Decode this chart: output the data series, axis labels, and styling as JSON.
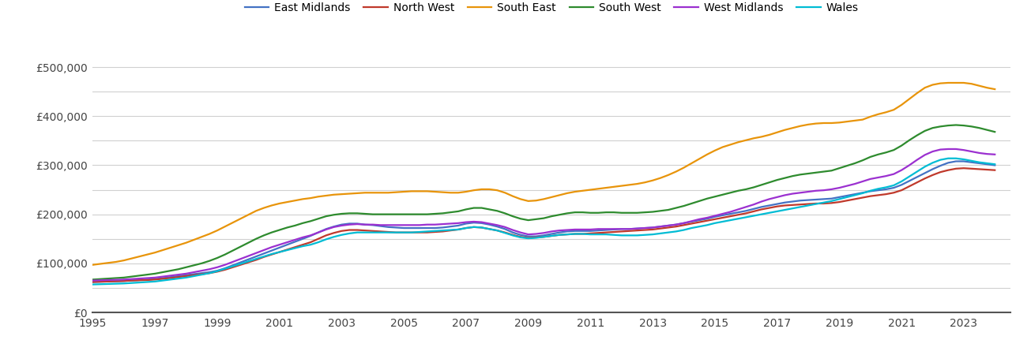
{
  "years": [
    1995.0,
    1995.25,
    1995.5,
    1995.75,
    1996.0,
    1996.25,
    1996.5,
    1996.75,
    1997.0,
    1997.25,
    1997.5,
    1997.75,
    1998.0,
    1998.25,
    1998.5,
    1998.75,
    1999.0,
    1999.25,
    1999.5,
    1999.75,
    2000.0,
    2000.25,
    2000.5,
    2000.75,
    2001.0,
    2001.25,
    2001.5,
    2001.75,
    2002.0,
    2002.25,
    2002.5,
    2002.75,
    2003.0,
    2003.25,
    2003.5,
    2003.75,
    2004.0,
    2004.25,
    2004.5,
    2004.75,
    2005.0,
    2005.25,
    2005.5,
    2005.75,
    2006.0,
    2006.25,
    2006.5,
    2006.75,
    2007.0,
    2007.25,
    2007.5,
    2007.75,
    2008.0,
    2008.25,
    2008.5,
    2008.75,
    2009.0,
    2009.25,
    2009.5,
    2009.75,
    2010.0,
    2010.25,
    2010.5,
    2010.75,
    2011.0,
    2011.25,
    2011.5,
    2011.75,
    2012.0,
    2012.25,
    2012.5,
    2012.75,
    2013.0,
    2013.25,
    2013.5,
    2013.75,
    2014.0,
    2014.25,
    2014.5,
    2014.75,
    2015.0,
    2015.25,
    2015.5,
    2015.75,
    2016.0,
    2016.25,
    2016.5,
    2016.75,
    2017.0,
    2017.25,
    2017.5,
    2017.75,
    2018.0,
    2018.25,
    2018.5,
    2018.75,
    2019.0,
    2019.25,
    2019.5,
    2019.75,
    2020.0,
    2020.25,
    2020.5,
    2020.75,
    2021.0,
    2021.25,
    2021.5,
    2021.75,
    2022.0,
    2022.25,
    2022.5,
    2022.75,
    2023.0,
    2023.25,
    2023.5,
    2023.75,
    2024.0
  ],
  "series": {
    "East Midlands": [
      62000,
      62500,
      63000,
      63500,
      64000,
      65000,
      66000,
      67000,
      68000,
      70000,
      72000,
      74000,
      76000,
      78000,
      80000,
      82000,
      85000,
      90000,
      96000,
      102000,
      108000,
      114000,
      120000,
      126000,
      132000,
      138000,
      144000,
      150000,
      156000,
      163000,
      170000,
      175000,
      179000,
      181000,
      181000,
      179000,
      178000,
      176000,
      174000,
      173000,
      172000,
      172000,
      172000,
      172000,
      172000,
      173000,
      175000,
      177000,
      181000,
      183000,
      182000,
      179000,
      175000,
      170000,
      163000,
      158000,
      155000,
      155000,
      157000,
      160000,
      163000,
      165000,
      166000,
      166000,
      166000,
      167000,
      168000,
      169000,
      170000,
      170000,
      171000,
      172000,
      173000,
      175000,
      177000,
      179000,
      182000,
      185000,
      188000,
      191000,
      195000,
      198000,
      201000,
      204000,
      207000,
      211000,
      215000,
      218000,
      221000,
      224000,
      226000,
      228000,
      229000,
      230000,
      231000,
      232000,
      235000,
      238000,
      241000,
      244000,
      247000,
      249000,
      251000,
      254000,
      260000,
      268000,
      276000,
      284000,
      292000,
      299000,
      305000,
      308000,
      308000,
      306000,
      304000,
      302000,
      300000
    ],
    "North West": [
      62000,
      62500,
      63000,
      63500,
      64000,
      65000,
      65500,
      66000,
      67000,
      68500,
      70000,
      72000,
      74000,
      76000,
      78000,
      80000,
      83000,
      87000,
      92000,
      97000,
      102000,
      107000,
      113000,
      118000,
      123000,
      128000,
      133000,
      138000,
      143000,
      150000,
      157000,
      162000,
      166000,
      168000,
      168000,
      167000,
      166000,
      165000,
      164000,
      163000,
      163000,
      163000,
      163000,
      163000,
      164000,
      165000,
      167000,
      169000,
      172000,
      174000,
      173000,
      170000,
      167000,
      163000,
      158000,
      154000,
      152000,
      153000,
      154000,
      156000,
      158000,
      159000,
      160000,
      160000,
      161000,
      162000,
      163000,
      164000,
      165000,
      166000,
      167000,
      168000,
      169000,
      171000,
      173000,
      175000,
      178000,
      181000,
      184000,
      187000,
      190000,
      193000,
      196000,
      199000,
      202000,
      206000,
      210000,
      213000,
      216000,
      218000,
      219000,
      220000,
      221000,
      222000,
      222000,
      223000,
      225000,
      228000,
      231000,
      234000,
      237000,
      239000,
      241000,
      244000,
      249000,
      257000,
      265000,
      273000,
      280000,
      286000,
      290000,
      293000,
      294000,
      293000,
      292000,
      291000,
      290000
    ],
    "South East": [
      97000,
      99000,
      101000,
      103000,
      106000,
      110000,
      114000,
      118000,
      122000,
      127000,
      132000,
      137000,
      142000,
      148000,
      154000,
      160000,
      167000,
      175000,
      183000,
      191000,
      199000,
      207000,
      213000,
      218000,
      222000,
      225000,
      228000,
      231000,
      233000,
      236000,
      238000,
      240000,
      241000,
      242000,
      243000,
      244000,
      244000,
      244000,
      244000,
      245000,
      246000,
      247000,
      247000,
      247000,
      246000,
      245000,
      244000,
      244000,
      246000,
      249000,
      251000,
      251000,
      249000,
      244000,
      237000,
      231000,
      227000,
      228000,
      231000,
      235000,
      239000,
      243000,
      246000,
      248000,
      250000,
      252000,
      254000,
      256000,
      258000,
      260000,
      262000,
      265000,
      269000,
      274000,
      280000,
      287000,
      295000,
      304000,
      313000,
      322000,
      330000,
      337000,
      342000,
      347000,
      351000,
      355000,
      358000,
      362000,
      367000,
      372000,
      376000,
      380000,
      383000,
      385000,
      386000,
      386000,
      387000,
      389000,
      391000,
      393000,
      399000,
      404000,
      408000,
      413000,
      423000,
      435000,
      447000,
      458000,
      464000,
      467000,
      468000,
      468000,
      468000,
      466000,
      462000,
      458000,
      455000
    ],
    "South West": [
      67000,
      68000,
      69000,
      70000,
      71000,
      73000,
      75000,
      77000,
      79000,
      82000,
      85000,
      88000,
      92000,
      96000,
      100000,
      105000,
      111000,
      118000,
      126000,
      134000,
      142000,
      150000,
      157000,
      163000,
      168000,
      173000,
      177000,
      182000,
      186000,
      191000,
      196000,
      199000,
      201000,
      202000,
      202000,
      201000,
      200000,
      200000,
      200000,
      200000,
      200000,
      200000,
      200000,
      200000,
      201000,
      202000,
      204000,
      206000,
      210000,
      213000,
      213000,
      210000,
      207000,
      202000,
      196000,
      191000,
      188000,
      190000,
      192000,
      196000,
      199000,
      202000,
      204000,
      204000,
      203000,
      203000,
      204000,
      204000,
      203000,
      203000,
      203000,
      204000,
      205000,
      207000,
      209000,
      213000,
      217000,
      222000,
      227000,
      232000,
      236000,
      240000,
      244000,
      248000,
      251000,
      255000,
      260000,
      265000,
      270000,
      274000,
      278000,
      281000,
      283000,
      285000,
      287000,
      289000,
      294000,
      299000,
      304000,
      310000,
      317000,
      322000,
      326000,
      331000,
      340000,
      351000,
      361000,
      370000,
      376000,
      379000,
      381000,
      382000,
      381000,
      379000,
      376000,
      372000,
      368000
    ],
    "West Midlands": [
      65000,
      65500,
      66000,
      66500,
      67000,
      68000,
      69000,
      70000,
      71000,
      73000,
      75000,
      77000,
      79000,
      82000,
      85000,
      88000,
      92000,
      97000,
      103000,
      109000,
      115000,
      121000,
      127000,
      133000,
      138000,
      143000,
      148000,
      153000,
      157000,
      163000,
      169000,
      174000,
      177000,
      179000,
      180000,
      179000,
      179000,
      178000,
      178000,
      178000,
      178000,
      178000,
      178000,
      179000,
      179000,
      180000,
      181000,
      182000,
      184000,
      185000,
      184000,
      181000,
      178000,
      174000,
      168000,
      163000,
      159000,
      160000,
      162000,
      165000,
      167000,
      168000,
      169000,
      169000,
      169000,
      170000,
      170000,
      170000,
      170000,
      170000,
      171000,
      172000,
      173000,
      175000,
      177000,
      179000,
      182000,
      186000,
      190000,
      193000,
      197000,
      201000,
      205000,
      210000,
      215000,
      220000,
      226000,
      231000,
      235000,
      239000,
      242000,
      244000,
      246000,
      248000,
      249000,
      251000,
      254000,
      258000,
      262000,
      267000,
      272000,
      275000,
      278000,
      282000,
      290000,
      300000,
      311000,
      321000,
      328000,
      332000,
      333000,
      333000,
      331000,
      328000,
      325000,
      323000,
      322000
    ],
    "Wales": [
      57000,
      57500,
      58000,
      58500,
      59000,
      60000,
      61000,
      62000,
      63000,
      65000,
      67000,
      69000,
      71000,
      74000,
      77000,
      80000,
      84000,
      89000,
      94000,
      99000,
      104000,
      109000,
      114000,
      119000,
      123000,
      127000,
      131000,
      135000,
      138000,
      143000,
      149000,
      154000,
      158000,
      161000,
      163000,
      163000,
      163000,
      163000,
      163000,
      163000,
      163000,
      163000,
      164000,
      165000,
      166000,
      167000,
      168000,
      169000,
      172000,
      174000,
      173000,
      170000,
      167000,
      162000,
      157000,
      153000,
      151000,
      152000,
      154000,
      156000,
      158000,
      159000,
      160000,
      160000,
      159000,
      159000,
      159000,
      158000,
      157000,
      157000,
      157000,
      158000,
      159000,
      161000,
      163000,
      165000,
      168000,
      172000,
      175000,
      178000,
      182000,
      185000,
      188000,
      191000,
      194000,
      197000,
      200000,
      203000,
      206000,
      209000,
      212000,
      215000,
      218000,
      221000,
      224000,
      227000,
      231000,
      235000,
      239000,
      243000,
      248000,
      252000,
      255000,
      259000,
      267000,
      277000,
      287000,
      297000,
      305000,
      311000,
      314000,
      314000,
      312000,
      309000,
      306000,
      304000,
      302000
    ]
  },
  "colors": {
    "East Midlands": "#4472c4",
    "North West": "#c0392b",
    "South East": "#e8940a",
    "South West": "#2e8b2e",
    "West Midlands": "#9b30d0",
    "Wales": "#00bcd4"
  },
  "ylim": [
    0,
    550000
  ],
  "yticks": [
    0,
    50000,
    100000,
    150000,
    200000,
    250000,
    300000,
    350000,
    400000,
    450000,
    500000
  ],
  "ytick_labels": [
    "£0",
    "",
    "£100,000",
    "",
    "£200,000",
    "",
    "£300,000",
    "",
    "£400,000",
    "",
    "£500,000"
  ],
  "xticks": [
    1995,
    1997,
    1999,
    2001,
    2003,
    2005,
    2007,
    2009,
    2011,
    2013,
    2015,
    2017,
    2019,
    2021,
    2023
  ],
  "xlim": [
    1995,
    2024.5
  ],
  "background_color": "#ffffff",
  "grid_color": "#d0d0d0",
  "linewidth": 1.6
}
